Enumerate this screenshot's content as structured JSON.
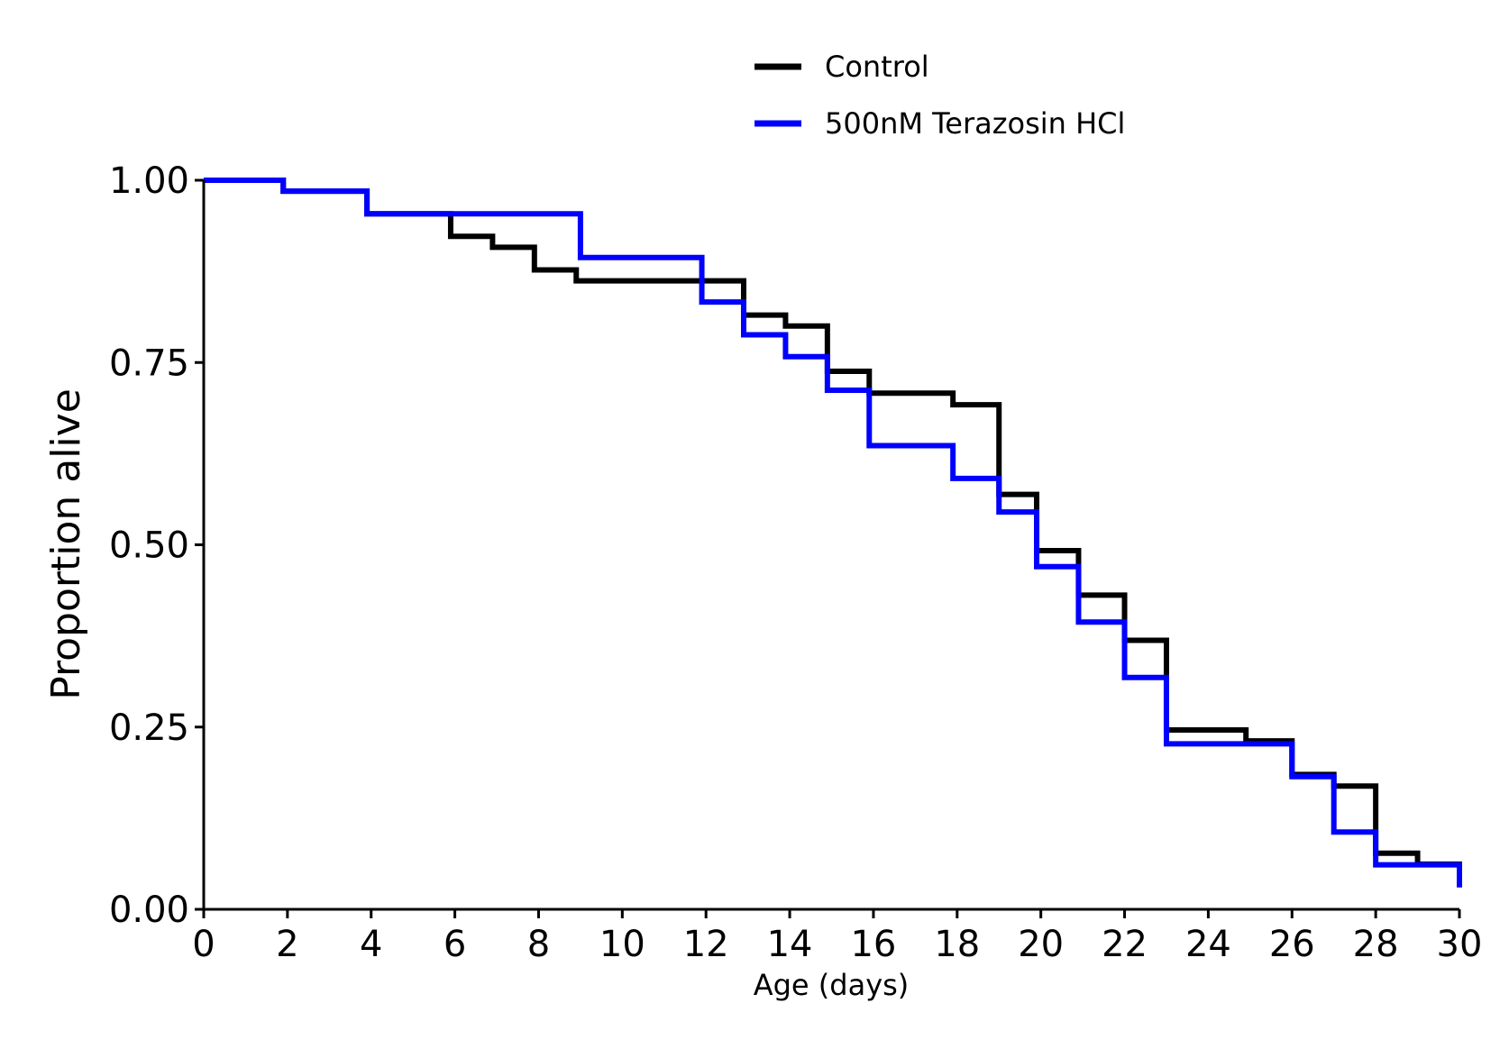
{
  "chart_data": {
    "type": "line",
    "step": true,
    "xlabel": "Age (days)",
    "ylabel": "Proportion alive",
    "xlim": [
      0,
      30
    ],
    "ylim": [
      0,
      1
    ],
    "xticks": [
      "0",
      "2",
      "4",
      "6",
      "8",
      "10",
      "12",
      "14",
      "16",
      "18",
      "20",
      "22",
      "24",
      "26",
      "28",
      "30"
    ],
    "xtick_values": [
      0,
      2,
      4,
      6,
      8,
      10,
      12,
      14,
      16,
      18,
      20,
      22,
      24,
      26,
      28,
      30
    ],
    "yticks": [
      "0.00",
      "0.25",
      "0.50",
      "0.75",
      "1.00"
    ],
    "ytick_values": [
      0,
      0.25,
      0.5,
      0.75,
      1.0
    ],
    "grid": false,
    "legend_position": "top-center",
    "series": [
      {
        "name": "Control",
        "color": "#000000",
        "points": [
          [
            0,
            1.0
          ],
          [
            1.9,
            0.985
          ],
          [
            3.9,
            0.954
          ],
          [
            5.9,
            0.923
          ],
          [
            6.9,
            0.908
          ],
          [
            7.9,
            0.877
          ],
          [
            8.9,
            0.862
          ],
          [
            12.9,
            0.815
          ],
          [
            13.9,
            0.8
          ],
          [
            14.9,
            0.738
          ],
          [
            15.9,
            0.708
          ],
          [
            17.9,
            0.692
          ],
          [
            19.0,
            0.569
          ],
          [
            19.9,
            0.492
          ],
          [
            20.9,
            0.431
          ],
          [
            22.0,
            0.369
          ],
          [
            23.0,
            0.246
          ],
          [
            24.9,
            0.231
          ],
          [
            26.0,
            0.185
          ],
          [
            27.0,
            0.169
          ],
          [
            28.0,
            0.077
          ],
          [
            29.0,
            0.062
          ],
          [
            30.0,
            0.031
          ]
        ]
      },
      {
        "name": "500nM Terazosin HCl",
        "color": "#0000ff",
        "points": [
          [
            0,
            1.0
          ],
          [
            1.9,
            0.985
          ],
          [
            3.9,
            0.954
          ],
          [
            9.0,
            0.894
          ],
          [
            11.9,
            0.833
          ],
          [
            12.9,
            0.788
          ],
          [
            13.9,
            0.758
          ],
          [
            14.9,
            0.712
          ],
          [
            15.9,
            0.636
          ],
          [
            17.9,
            0.591
          ],
          [
            19.0,
            0.545
          ],
          [
            19.9,
            0.47
          ],
          [
            20.9,
            0.394
          ],
          [
            22.0,
            0.318
          ],
          [
            23.0,
            0.227
          ],
          [
            26.0,
            0.182
          ],
          [
            27.0,
            0.106
          ],
          [
            28.0,
            0.061
          ],
          [
            30.0,
            0.03
          ]
        ]
      }
    ]
  }
}
